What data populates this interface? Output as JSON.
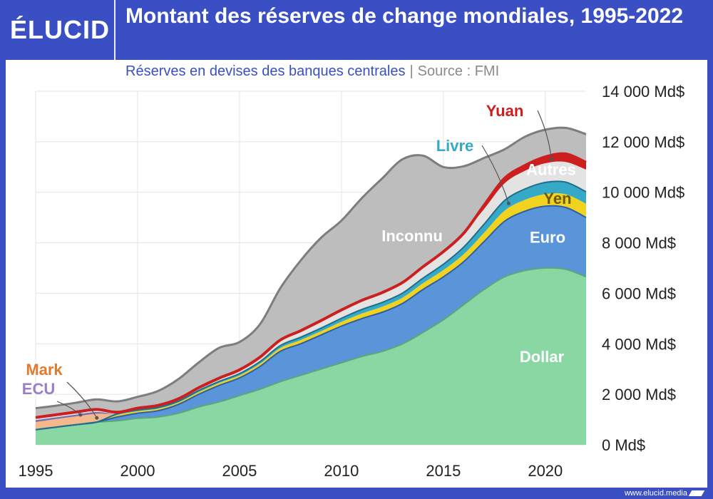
{
  "brand": {
    "logo_text": "ÉLUCID",
    "footer_url": "www.elucid.media"
  },
  "header": {
    "title": "Montant des réserves de change mondiales, 1995-2022",
    "subtitle": "Réserves en devises des banques centrales",
    "separator": "|",
    "source": "Source : FMI"
  },
  "chart_data": {
    "type": "area",
    "stacked": true,
    "x": [
      1995,
      1996,
      1997,
      1998,
      1999,
      2000,
      2001,
      2002,
      2003,
      2004,
      2005,
      2006,
      2007,
      2008,
      2009,
      2010,
      2011,
      2012,
      2013,
      2014,
      2015,
      2016,
      2017,
      2018,
      2019,
      2020,
      2021,
      2022
    ],
    "xlim": [
      1995,
      2022
    ],
    "ylim": [
      0,
      14000
    ],
    "x_ticks": [
      "1995",
      "2000",
      "2005",
      "2010",
      "2015",
      "2020"
    ],
    "y_ticks": [
      "0 Md$",
      "2 000 Md$",
      "4 000 Md$",
      "6 000 Md$",
      "8 000 Md$",
      "10 000 Md$",
      "12 000 Md$",
      "14 000 Md$"
    ],
    "series": [
      {
        "name": "Dollar",
        "color": "#89d8a4",
        "values": [
          600,
          700,
          800,
          900,
          950,
          1050,
          1100,
          1250,
          1500,
          1700,
          1950,
          2200,
          2500,
          2750,
          3000,
          3250,
          3500,
          3700,
          4000,
          4450,
          4950,
          5550,
          6150,
          6650,
          6900,
          7000,
          6950,
          6650
        ]
      },
      {
        "name": "Euro",
        "color": "#5b95d9",
        "values": [
          0,
          0,
          0,
          0,
          150,
          200,
          250,
          350,
          500,
          650,
          700,
          900,
          1200,
          1250,
          1350,
          1450,
          1500,
          1550,
          1600,
          1700,
          1700,
          1700,
          1900,
          2200,
          2350,
          2450,
          2450,
          2350
        ]
      },
      {
        "name": "Yen",
        "color": "#f1d21f",
        "values": [
          0,
          0,
          0,
          0,
          80,
          80,
          80,
          80,
          90,
          100,
          100,
          110,
          130,
          150,
          150,
          170,
          200,
          220,
          230,
          250,
          270,
          300,
          350,
          420,
          450,
          480,
          520,
          550
        ]
      },
      {
        "name": "Livre",
        "color": "#36a9c8",
        "values": [
          0,
          0,
          0,
          0,
          50,
          50,
          50,
          50,
          60,
          60,
          70,
          80,
          100,
          110,
          120,
          140,
          160,
          170,
          180,
          200,
          230,
          280,
          340,
          400,
          430,
          460,
          480,
          470
        ]
      },
      {
        "name": "Mark",
        "color": "#f3b98c",
        "values": [
          300,
          320,
          330,
          330,
          0,
          0,
          0,
          0,
          0,
          0,
          0,
          0,
          0,
          0,
          0,
          0,
          0,
          0,
          0,
          0,
          0,
          0,
          0,
          0,
          0,
          0,
          0,
          0
        ]
      },
      {
        "name": "ECU",
        "color": "#7e6da6",
        "values": [
          80,
          70,
          70,
          70,
          0,
          0,
          0,
          0,
          0,
          0,
          0,
          0,
          0,
          0,
          0,
          0,
          0,
          0,
          0,
          0,
          0,
          0,
          0,
          0,
          0,
          0,
          0,
          0
        ]
      },
      {
        "name": "Autres",
        "color": "#e3e3e3",
        "values": [
          100,
          100,
          100,
          100,
          60,
          70,
          80,
          90,
          110,
          130,
          150,
          180,
          220,
          260,
          300,
          330,
          360,
          390,
          420,
          450,
          500,
          550,
          600,
          680,
          720,
          760,
          800,
          880
        ]
      },
      {
        "name": "Yuan",
        "color": "#cc1f1f",
        "values": [
          0,
          0,
          0,
          0,
          0,
          0,
          0,
          0,
          0,
          0,
          0,
          0,
          0,
          0,
          0,
          0,
          0,
          0,
          0,
          0,
          0,
          0,
          150,
          200,
          210,
          250,
          320,
          280
        ]
      },
      {
        "name": "Inconnu",
        "color": "#bdbdbd",
        "values": [
          370,
          360,
          370,
          400,
          430,
          450,
          570,
          780,
          1000,
          1200,
          1100,
          1300,
          2050,
          2780,
          3280,
          3540,
          4050,
          4520,
          4880,
          4400,
          3350,
          2650,
          1870,
          1150,
          1140,
          1080,
          1030,
          1120
        ]
      }
    ]
  }
}
